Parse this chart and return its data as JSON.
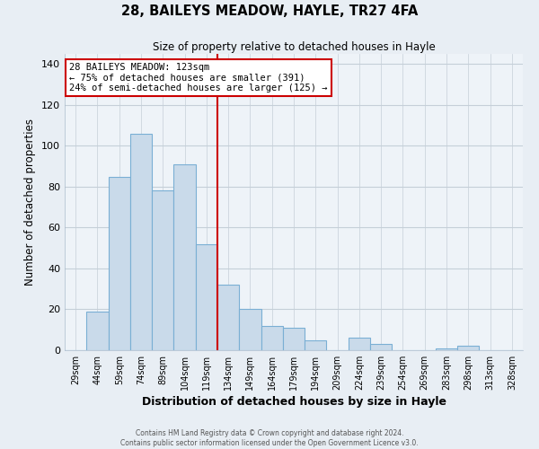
{
  "title": "28, BAILEYS MEADOW, HAYLE, TR27 4FA",
  "subtitle": "Size of property relative to detached houses in Hayle",
  "xlabel": "Distribution of detached houses by size in Hayle",
  "ylabel": "Number of detached properties",
  "bar_labels": [
    "29sqm",
    "44sqm",
    "59sqm",
    "74sqm",
    "89sqm",
    "104sqm",
    "119sqm",
    "134sqm",
    "149sqm",
    "164sqm",
    "179sqm",
    "194sqm",
    "209sqm",
    "224sqm",
    "239sqm",
    "254sqm",
    "269sqm",
    "283sqm",
    "298sqm",
    "313sqm",
    "328sqm"
  ],
  "bar_values": [
    0,
    19,
    85,
    106,
    78,
    91,
    52,
    32,
    20,
    12,
    11,
    5,
    0,
    6,
    3,
    0,
    0,
    1,
    2,
    0,
    0
  ],
  "bar_color": "#c9daea",
  "bar_edgecolor": "#7aafd4",
  "vline_x_index": 6,
  "vline_color": "#cc0000",
  "annotation_title": "28 BAILEYS MEADOW: 123sqm",
  "annotation_line1": "← 75% of detached houses are smaller (391)",
  "annotation_line2": "24% of semi-detached houses are larger (125) →",
  "annotation_box_edgecolor": "#cc0000",
  "ylim": [
    0,
    145
  ],
  "yticks": [
    0,
    20,
    40,
    60,
    80,
    100,
    120,
    140
  ],
  "footer1": "Contains HM Land Registry data © Crown copyright and database right 2024.",
  "footer2": "Contains public sector information licensed under the Open Government Licence v3.0.",
  "bg_color": "#e8eef4",
  "plot_bg_color": "#eef3f8",
  "grid_color": "#c5cfd8"
}
